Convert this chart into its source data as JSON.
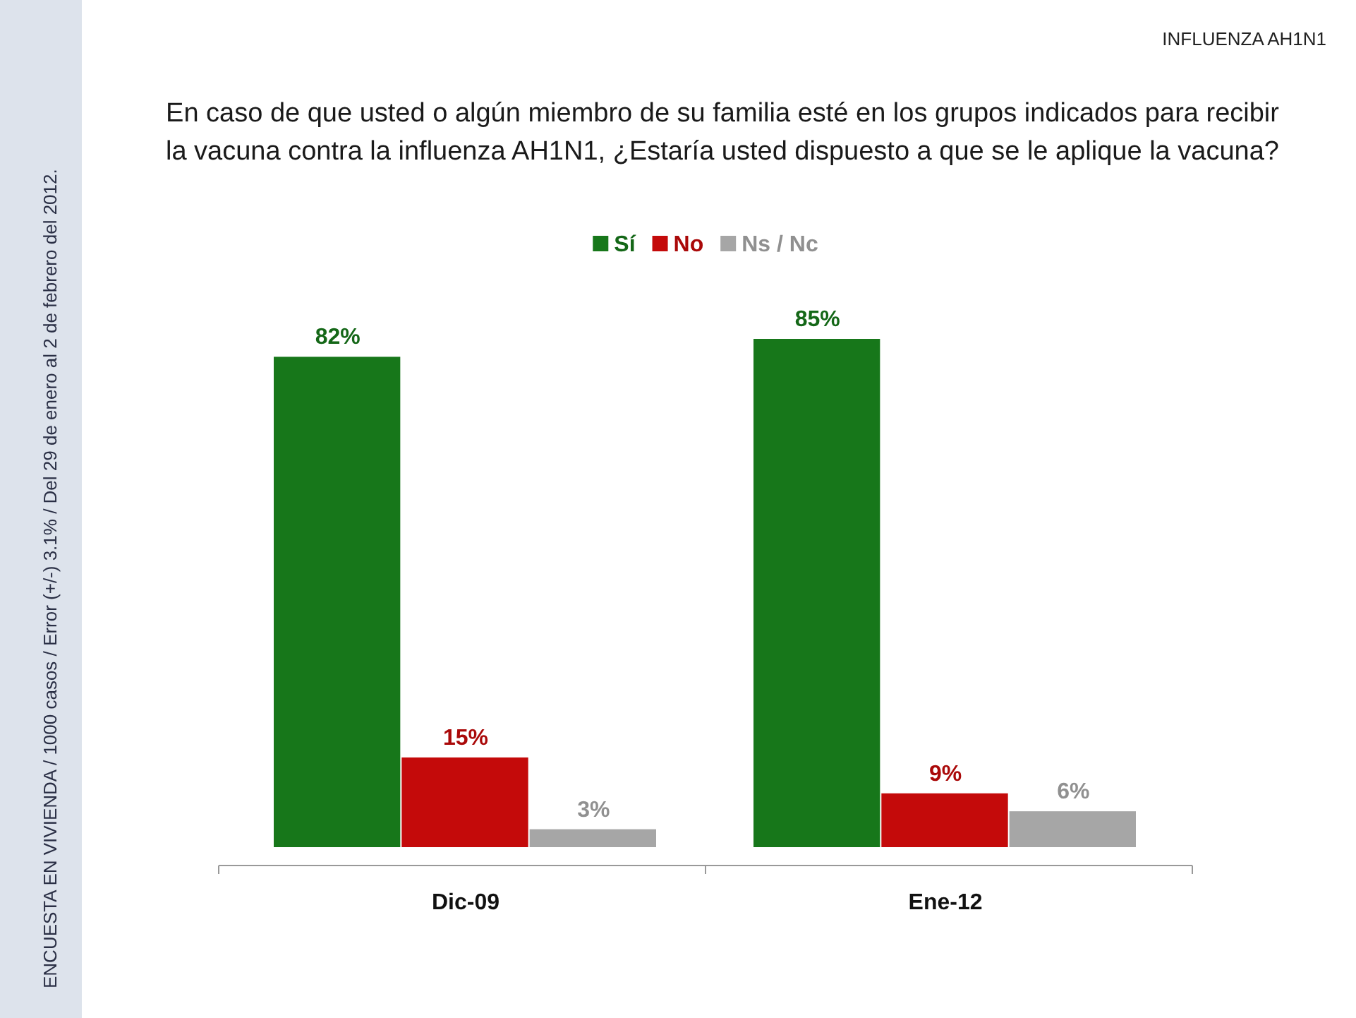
{
  "chart_data": {
    "type": "bar",
    "title": "En caso de que usted o algún miembro de su familia esté en los grupos indicados para recibir la vacuna contra la influenza AH1N1, ¿Estaría usted dispuesto a que se le aplique la vacuna?",
    "categories": [
      "Dic-09",
      "Ene-12"
    ],
    "series": [
      {
        "name": "Sí",
        "color": "#17771a",
        "values": [
          82,
          85
        ],
        "value_labels": [
          "82%",
          "85%"
        ]
      },
      {
        "name": "No",
        "color": "#c40a0a",
        "values": [
          15,
          9
        ],
        "value_labels": [
          "15%",
          "9%"
        ]
      },
      {
        "name": "Ns / Nc",
        "color": "#a6a6a6",
        "values": [
          3,
          6
        ],
        "value_labels": [
          "3%",
          "6%"
        ]
      }
    ],
    "legend": "top",
    "tick_labels": "x",
    "annotations": [
      "INFLUENZA AH1N1",
      "ENCUESTA EN VIVIENDA / 1000 casos / Error (+/-) 3.1% / Del 29 de enero al 2 de febrero del 2012."
    ]
  }
}
